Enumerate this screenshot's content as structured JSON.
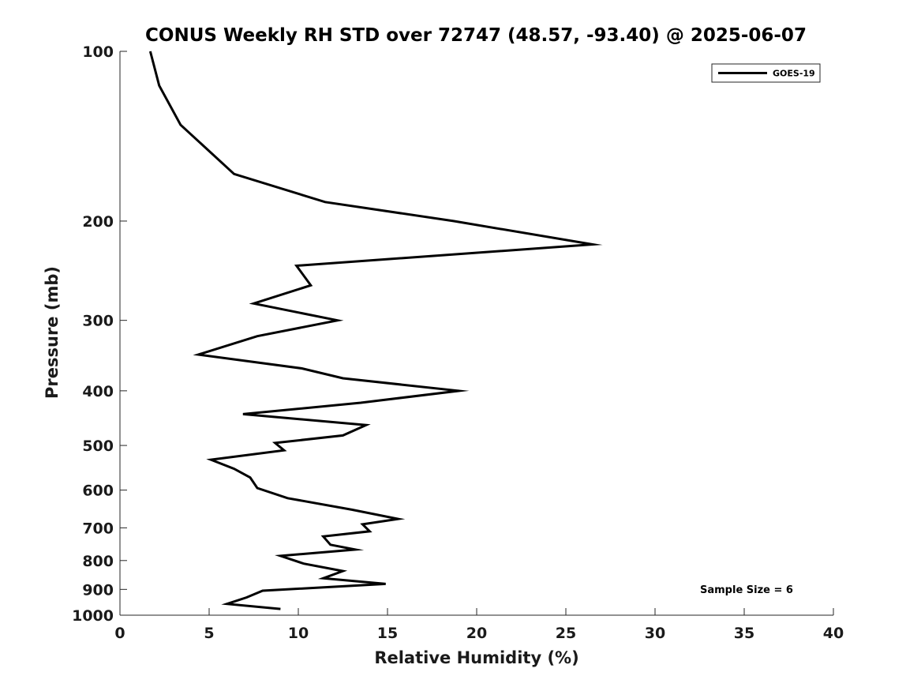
{
  "chart_data": {
    "type": "line",
    "title": "CONUS Weekly RH STD over 72747 (48.57, -93.40) @ 2025-06-07",
    "xlabel": "Relative Humidity (%)",
    "ylabel": "Pressure (mb)",
    "xlim": [
      0,
      40
    ],
    "ylim": [
      1000,
      100
    ],
    "y_scale": "log",
    "y_reversed": true,
    "grid": false,
    "x_ticks": [
      0,
      5,
      10,
      15,
      20,
      25,
      30,
      35,
      40
    ],
    "y_ticks": [
      100,
      200,
      300,
      400,
      500,
      600,
      700,
      800,
      900,
      1000
    ],
    "legend": {
      "position": "top-right",
      "entries": [
        "GOES-19"
      ]
    },
    "annotation": "Sample Size = 6",
    "colors": {
      "series": "#000000",
      "axes": "#262626"
    },
    "series": [
      {
        "name": "GOES-19",
        "x": [
          1.7,
          2.2,
          3.4,
          6.4,
          11.5,
          18.7,
          26.5,
          9.9,
          10.7,
          7.5,
          12.2,
          7.7,
          4.4,
          10.2,
          12.5,
          19.0,
          13.5,
          6.9,
          13.8,
          12.5,
          8.7,
          9.2,
          5.1,
          6.4,
          7.3,
          7.7,
          9.4,
          13.0,
          15.6,
          13.6,
          14.0,
          11.4,
          11.8,
          13.2,
          9.0,
          10.3,
          12.5,
          11.4,
          14.9,
          8.0,
          7.1,
          6.0,
          9.0
        ],
        "y": [
          100,
          115,
          135,
          165,
          185,
          200,
          220,
          240,
          260,
          280,
          300,
          320,
          345,
          365,
          380,
          400,
          420,
          440,
          460,
          480,
          495,
          510,
          530,
          550,
          570,
          595,
          620,
          650,
          675,
          690,
          710,
          725,
          750,
          765,
          785,
          810,
          835,
          860,
          880,
          905,
          930,
          955,
          975
        ]
      }
    ]
  }
}
